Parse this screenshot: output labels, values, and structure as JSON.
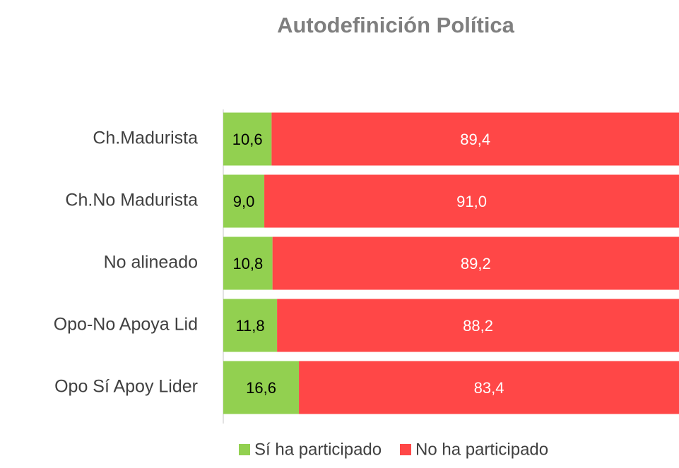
{
  "chart_data": {
    "type": "stacked_barh",
    "title": "Autodefinición Política",
    "categories": [
      "Ch.Madurista",
      "Ch.No Madurista",
      "No alineado",
      "Opo-No Apoya Lid",
      "Opo Sí Apoy Lider"
    ],
    "series": [
      {
        "name": "Sí ha participado",
        "color": "#92d050",
        "values": [
          10.6,
          9.0,
          10.8,
          11.8,
          16.6
        ],
        "value_labels": [
          "10,6",
          "9,0",
          "10,8",
          "11,8",
          "16,6"
        ]
      },
      {
        "name": "No ha participado",
        "color": "#ff4747",
        "values": [
          89.4,
          91.0,
          89.2,
          88.2,
          83.4
        ],
        "value_labels": [
          "89,4",
          "91,0",
          "89,2",
          "88,2",
          "83,4"
        ]
      }
    ],
    "xlim": [
      0,
      100
    ]
  }
}
